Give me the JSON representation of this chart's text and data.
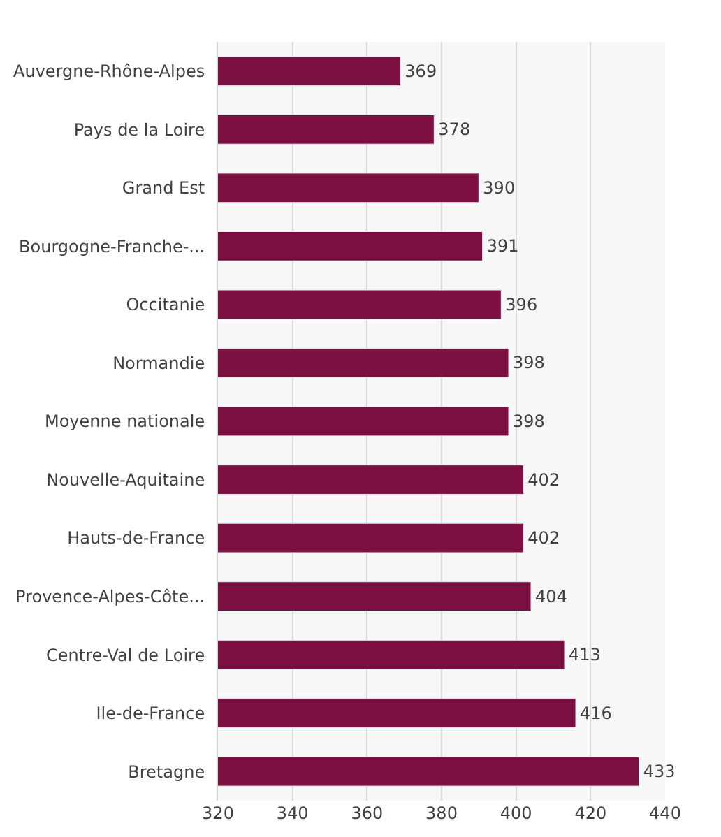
{
  "chart_data": {
    "type": "bar",
    "orientation": "horizontal",
    "categories": [
      "Auvergne-Rhône-Alpes",
      "Pays de la Loire",
      "Grand Est",
      "Bourgogne-Franche-...",
      "Occitanie",
      "Normandie",
      "Moyenne nationale",
      "Nouvelle-Aquitaine",
      "Hauts-de-France",
      "Provence-Alpes-Côte...",
      "Centre-Val de Loire",
      "Ile-de-France",
      "Bretagne"
    ],
    "values": [
      369,
      378,
      390,
      391,
      396,
      398,
      398,
      402,
      402,
      404,
      413,
      416,
      433
    ],
    "color": "#7b1040",
    "xlim": [
      320,
      440
    ],
    "xticks": [
      320,
      340,
      360,
      380,
      400,
      420,
      440
    ],
    "grid": "x",
    "data_labels": true,
    "legend": false
  }
}
